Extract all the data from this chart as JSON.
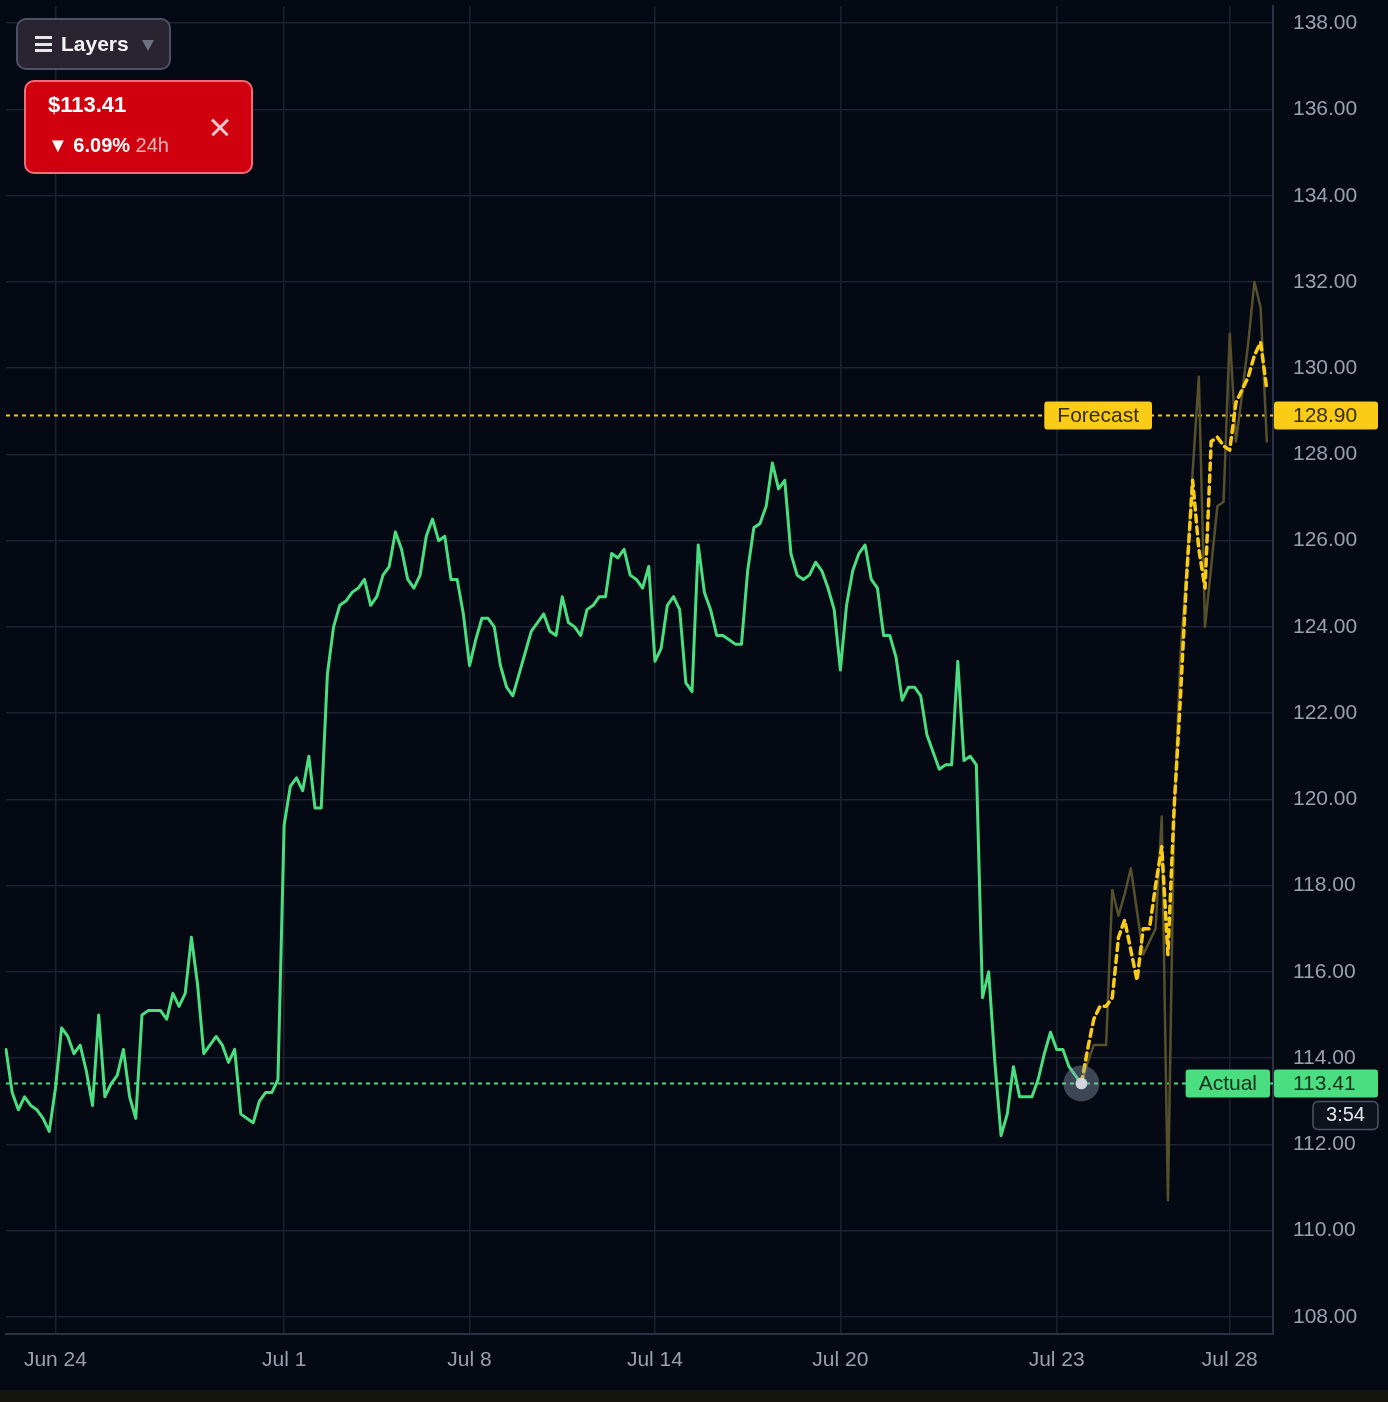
{
  "chart_data": {
    "type": "line",
    "categories": [
      null,
      null,
      null,
      null,
      null,
      null,
      null,
      null,
      "Jun 24",
      null,
      null,
      null,
      null,
      null,
      null,
      null,
      null,
      null,
      null,
      null,
      null,
      null,
      null,
      null,
      null,
      null,
      null,
      null,
      null,
      null,
      null,
      null,
      null,
      null,
      null,
      null,
      null,
      null,
      null,
      null,
      null,
      null,
      null,
      null,
      null,
      "Jul 1",
      null,
      null,
      null,
      null,
      null,
      null,
      null,
      null,
      null,
      null,
      null,
      null,
      null,
      null,
      null,
      null,
      null,
      null,
      null,
      null,
      null,
      null,
      null,
      null,
      null,
      null,
      null,
      null,
      null,
      "Jul 8",
      null,
      null,
      null,
      null,
      null,
      null,
      null,
      null,
      null,
      null,
      null,
      null,
      null,
      null,
      null,
      null,
      null,
      null,
      null,
      null,
      null,
      null,
      null,
      null,
      null,
      null,
      null,
      null,
      null,
      "Jul 14",
      null,
      null,
      null,
      null,
      null,
      null,
      null,
      null,
      null,
      null,
      null,
      null,
      null,
      null,
      null,
      null,
      null,
      null,
      null,
      null,
      null,
      null,
      null,
      null,
      null,
      null,
      null,
      null,
      null,
      "Jul 20",
      null,
      null,
      null,
      null,
      null,
      null,
      null,
      null,
      null,
      null,
      null,
      null,
      null,
      null,
      null,
      null,
      null,
      null,
      null,
      null,
      null,
      null,
      null,
      null,
      null,
      null,
      null,
      null,
      null,
      null,
      null,
      null,
      null,
      null,
      "Jul 23",
      null,
      null,
      null,
      null,
      null,
      null,
      null,
      null,
      null,
      null,
      null,
      null,
      null,
      null,
      null,
      null,
      null,
      null,
      null,
      null,
      null,
      null,
      null,
      null,
      null,
      null,
      null,
      "Jul 28",
      null,
      null,
      null,
      null,
      null,
      null,
      null
    ],
    "ylim": [
      107.6,
      138.4
    ],
    "yticks": [
      {
        "value": 108,
        "label": "108.00"
      },
      {
        "value": 110,
        "label": "110.00"
      },
      {
        "value": 112,
        "label": "112.00"
      },
      {
        "value": 114,
        "label": "114.00"
      },
      {
        "value": 116,
        "label": "116.00"
      },
      {
        "value": 118,
        "label": "118.00"
      },
      {
        "value": 120,
        "label": "120.00"
      },
      {
        "value": 122,
        "label": "122.00"
      },
      {
        "value": 124,
        "label": "124.00"
      },
      {
        "value": 126,
        "label": "126.00"
      },
      {
        "value": 128,
        "label": "128.00"
      },
      {
        "value": 130,
        "label": "130.00"
      },
      {
        "value": 132,
        "label": "132.00"
      },
      {
        "value": 134,
        "label": "134.00"
      },
      {
        "value": 136,
        "label": "136.00"
      },
      {
        "value": 138,
        "label": "138.00"
      }
    ],
    "grid": true,
    "series": [
      {
        "color": "#4ade80",
        "line_style": "solid",
        "marker": "none",
        "values": [
          114.2,
          113.2,
          112.8,
          113.1,
          112.9,
          112.8,
          112.6,
          112.3,
          113.3,
          114.7,
          114.5,
          114.1,
          114.3,
          113.7,
          112.9,
          115.0,
          113.1,
          113.4,
          113.6,
          114.2,
          113.1,
          112.6,
          115.0,
          115.1,
          115.1,
          115.1,
          114.9,
          115.5,
          115.2,
          115.5,
          116.8,
          115.7,
          114.1,
          114.3,
          114.5,
          114.3,
          113.9,
          114.2,
          112.7,
          112.6,
          112.5,
          113.0,
          113.2,
          113.2,
          113.5,
          119.4,
          120.3,
          120.5,
          120.2,
          121.0,
          119.8,
          119.8,
          122.9,
          124.0,
          124.5,
          124.6,
          124.8,
          124.9,
          125.1,
          124.5,
          124.7,
          125.2,
          125.4,
          126.2,
          125.8,
          125.1,
          124.9,
          125.2,
          126.1,
          126.5,
          126.0,
          126.1,
          125.1,
          125.1,
          124.3,
          123.1,
          123.7,
          124.2,
          124.2,
          124.0,
          123.1,
          122.6,
          122.4,
          122.9,
          123.4,
          123.9,
          124.1,
          124.3,
          123.9,
          123.8,
          124.7,
          124.1,
          124.0,
          123.8,
          124.4,
          124.5,
          124.7,
          124.7,
          125.7,
          125.6,
          125.8,
          125.2,
          125.1,
          124.9,
          125.4,
          123.2,
          123.5,
          124.5,
          124.7,
          124.4,
          122.7,
          122.5,
          125.9,
          124.8,
          124.4,
          123.8,
          123.8,
          123.7,
          123.6,
          123.6,
          125.3,
          126.3,
          126.4,
          126.8,
          127.8,
          127.2,
          127.4,
          125.7,
          125.2,
          125.1,
          125.2,
          125.5,
          125.3,
          124.9,
          124.4,
          123.0,
          124.5,
          125.3,
          125.7,
          125.9,
          125.1,
          124.9,
          123.8,
          123.8,
          123.3,
          122.3,
          122.6,
          122.6,
          122.4,
          121.5,
          121.1,
          120.7,
          120.8,
          120.8,
          123.2,
          120.9,
          121.0,
          120.8,
          115.4,
          116.0,
          113.9,
          112.2,
          112.7,
          113.8,
          113.1,
          113.1,
          113.1,
          113.5,
          114.1,
          114.6,
          114.2,
          114.2,
          113.8,
          113.6,
          113.41,
          null,
          null,
          null,
          null,
          null,
          null,
          null,
          null,
          null,
          null,
          null,
          null,
          null,
          null,
          null,
          null,
          null,
          null,
          null,
          null,
          null,
          null,
          null,
          null,
          null,
          null,
          null,
          null,
          null,
          null,
          null
        ]
      },
      {
        "color": "#facc15",
        "line_style": "dashed",
        "marker": "none",
        "values": [
          null,
          null,
          null,
          null,
          null,
          null,
          null,
          null,
          null,
          null,
          null,
          null,
          null,
          null,
          null,
          null,
          null,
          null,
          null,
          null,
          null,
          null,
          null,
          null,
          null,
          null,
          null,
          null,
          null,
          null,
          null,
          null,
          null,
          null,
          null,
          null,
          null,
          null,
          null,
          null,
          null,
          null,
          null,
          null,
          null,
          null,
          null,
          null,
          null,
          null,
          null,
          null,
          null,
          null,
          null,
          null,
          null,
          null,
          null,
          null,
          null,
          null,
          null,
          null,
          null,
          null,
          null,
          null,
          null,
          null,
          null,
          null,
          null,
          null,
          null,
          null,
          null,
          null,
          null,
          null,
          null,
          null,
          null,
          null,
          null,
          null,
          null,
          null,
          null,
          null,
          null,
          null,
          null,
          null,
          null,
          null,
          null,
          null,
          null,
          null,
          null,
          null,
          null,
          null,
          null,
          null,
          null,
          null,
          null,
          null,
          null,
          null,
          null,
          null,
          null,
          null,
          null,
          null,
          null,
          null,
          null,
          null,
          null,
          null,
          null,
          null,
          null,
          null,
          null,
          null,
          null,
          null,
          null,
          null,
          null,
          null,
          null,
          null,
          null,
          null,
          null,
          null,
          null,
          null,
          null,
          null,
          null,
          null,
          null,
          null,
          null,
          null,
          null,
          null,
          null,
          null,
          null,
          null,
          null,
          null,
          null,
          null,
          null,
          null,
          null,
          null,
          null,
          null,
          null,
          null,
          null,
          null,
          null,
          null,
          113.41,
          114.2,
          114.9,
          115.2,
          115.2,
          115.4,
          116.8,
          117.2,
          116.5,
          115.8,
          117.0,
          117.0,
          118.0,
          118.9,
          116.4,
          119.8,
          122.3,
          125.1,
          127.4,
          125.8,
          124.9,
          128.3,
          128.4,
          128.2,
          128.1,
          129.2,
          129.5,
          129.8,
          130.3,
          130.6,
          129.5,
          null
        ]
      },
      {
        "color": "#57502c",
        "line_style": "solid",
        "marker": "none",
        "values": [
          null,
          null,
          null,
          null,
          null,
          null,
          null,
          null,
          null,
          null,
          null,
          null,
          null,
          null,
          null,
          null,
          null,
          null,
          null,
          null,
          null,
          null,
          null,
          null,
          null,
          null,
          null,
          null,
          null,
          null,
          null,
          null,
          null,
          null,
          null,
          null,
          null,
          null,
          null,
          null,
          null,
          null,
          null,
          null,
          null,
          null,
          null,
          null,
          null,
          null,
          null,
          null,
          null,
          null,
          null,
          null,
          null,
          null,
          null,
          null,
          null,
          null,
          null,
          null,
          null,
          null,
          null,
          null,
          null,
          null,
          null,
          null,
          null,
          null,
          null,
          null,
          null,
          null,
          null,
          null,
          null,
          null,
          null,
          null,
          null,
          null,
          null,
          null,
          null,
          null,
          null,
          null,
          null,
          null,
          null,
          null,
          null,
          null,
          null,
          null,
          null,
          null,
          null,
          null,
          null,
          null,
          null,
          null,
          null,
          null,
          null,
          null,
          null,
          null,
          null,
          null,
          null,
          null,
          null,
          null,
          null,
          null,
          null,
          null,
          null,
          null,
          null,
          null,
          null,
          null,
          null,
          null,
          null,
          null,
          null,
          null,
          null,
          null,
          null,
          null,
          null,
          null,
          null,
          null,
          null,
          null,
          null,
          null,
          null,
          null,
          null,
          null,
          null,
          null,
          null,
          null,
          null,
          null,
          null,
          null,
          null,
          null,
          null,
          null,
          null,
          null,
          null,
          null,
          null,
          null,
          null,
          null,
          null,
          null,
          113.41,
          113.9,
          114.3,
          114.3,
          114.3,
          117.9,
          117.3,
          117.8,
          118.4,
          117.4,
          116.4,
          116.7,
          117.0,
          119.6,
          110.7,
          119.6,
          123.3,
          125.3,
          127.6,
          129.8,
          124.0,
          125.4,
          126.8,
          126.9,
          130.8,
          128.3,
          129.4,
          130.6,
          132.0,
          131.4,
          128.3,
          null
        ]
      },
      {
        "type": "scatter",
        "color": "#d1d5db",
        "marker": "circle",
        "values": [
          null,
          null,
          null,
          null,
          null,
          null,
          null,
          null,
          null,
          null,
          null,
          null,
          null,
          null,
          null,
          null,
          null,
          null,
          null,
          null,
          null,
          null,
          null,
          null,
          null,
          null,
          null,
          null,
          null,
          null,
          null,
          null,
          null,
          null,
          null,
          null,
          null,
          null,
          null,
          null,
          null,
          null,
          null,
          null,
          null,
          null,
          null,
          null,
          null,
          null,
          null,
          null,
          null,
          null,
          null,
          null,
          null,
          null,
          null,
          null,
          null,
          null,
          null,
          null,
          null,
          null,
          null,
          null,
          null,
          null,
          null,
          null,
          null,
          null,
          null,
          null,
          null,
          null,
          null,
          null,
          null,
          null,
          null,
          null,
          null,
          null,
          null,
          null,
          null,
          null,
          null,
          null,
          null,
          null,
          null,
          null,
          null,
          null,
          null,
          null,
          null,
          null,
          null,
          null,
          null,
          null,
          null,
          null,
          null,
          null,
          null,
          null,
          null,
          null,
          null,
          null,
          null,
          null,
          null,
          null,
          null,
          null,
          null,
          null,
          null,
          null,
          null,
          null,
          null,
          null,
          null,
          null,
          null,
          null,
          null,
          null,
          null,
          null,
          null,
          null,
          null,
          null,
          null,
          null,
          null,
          null,
          null,
          null,
          null,
          null,
          null,
          null,
          null,
          null,
          null,
          null,
          null,
          null,
          null,
          null,
          null,
          null,
          null,
          null,
          null,
          null,
          null,
          null,
          null,
          null,
          null,
          null,
          null,
          null,
          113.41,
          null,
          null,
          null,
          null,
          null,
          null,
          null,
          null,
          null,
          null,
          null,
          null,
          null,
          null,
          null,
          null,
          null,
          null,
          null,
          null,
          null,
          null,
          null,
          null,
          null,
          null,
          null,
          null,
          null,
          null,
          null
        ]
      }
    ],
    "ref_lines": [
      {
        "axis": "y",
        "value": 128.9,
        "label": "Forecast",
        "color": "#facc15",
        "line_style": "dotted"
      },
      {
        "axis": "y",
        "value": 113.41,
        "label": "Actual",
        "color": "#4ade80",
        "line_style": "dotted"
      }
    ],
    "annotations": [
      "Layers",
      "$113.41",
      "▼ 6.09% 24h",
      "128.90",
      "113.41",
      "3:54"
    ]
  }
}
